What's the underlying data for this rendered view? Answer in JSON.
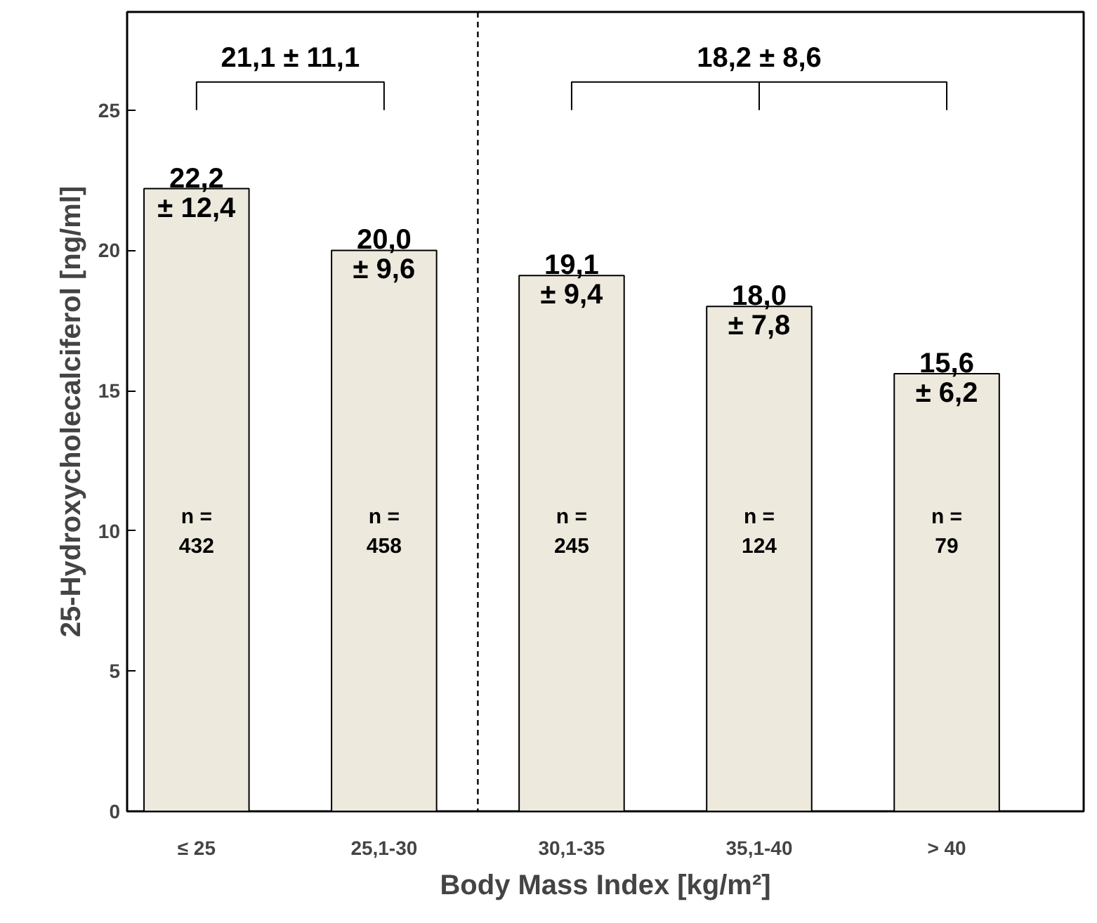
{
  "chart_data": {
    "type": "bar",
    "xlabel": "Body Mass Index [kg/m²]",
    "ylabel": "25-Hydroxycholecalciferol [ng/ml]",
    "categories": [
      "≤ 25",
      "25,1-30",
      "30,1-35",
      "35,1-40",
      "> 40"
    ],
    "values": [
      22.2,
      20.0,
      19.1,
      18.0,
      15.6
    ],
    "value_labels": [
      "22,2\n± 12,4",
      "20,0\n± 9,6",
      "19,1\n± 9,4",
      "18,0\n± 7,8",
      "15,6\n± 6,2"
    ],
    "color": "#ede9dd",
    "ylim": [
      0,
      28.5
    ],
    "yticks": [
      0,
      5,
      10,
      15,
      20,
      25
    ],
    "grid": false,
    "annotations": [
      "n =\n432",
      "n =\n458",
      "n =\n245",
      "n =\n124",
      "n =\n79",
      "21,1 ± 11,1",
      "18,2 ± 8,6"
    ]
  }
}
